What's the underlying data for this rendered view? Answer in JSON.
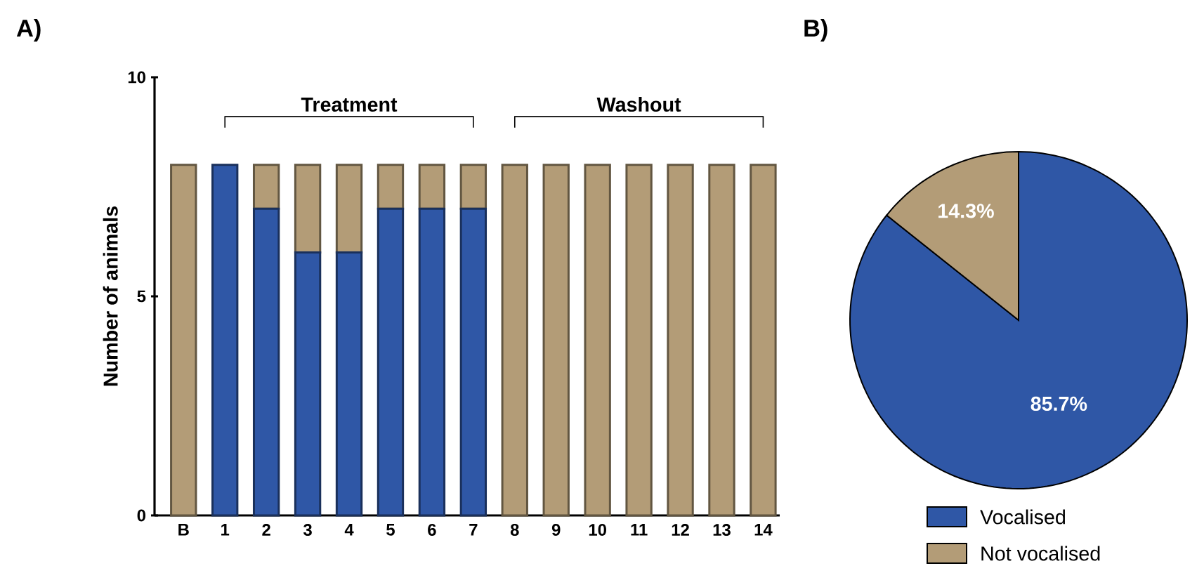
{
  "chart_data": [
    {
      "type": "bar",
      "title": "A)",
      "ylabel": "Number of animals",
      "stacked": true,
      "categories": [
        "B",
        "1",
        "2",
        "3",
        "4",
        "5",
        "6",
        "7",
        "8",
        "9",
        "10",
        "11",
        "12",
        "13",
        "14"
      ],
      "series": [
        {
          "color": "#2f57a6",
          "values": [
            0,
            8,
            7,
            6,
            6,
            7,
            7,
            7,
            0,
            0,
            0,
            0,
            0,
            0,
            0
          ]
        },
        {
          "color": "#b39c77",
          "values": [
            8,
            0,
            1,
            2,
            2,
            1,
            1,
            1,
            8,
            8,
            8,
            8,
            8,
            8,
            8
          ]
        }
      ],
      "ylim": [
        0,
        10
      ],
      "yticks": [
        0,
        5,
        10
      ],
      "annotations": [
        "Treatment",
        "Washout"
      ]
    },
    {
      "type": "pie",
      "title": "B)",
      "categories": [
        "Vocalised",
        "Not vocalised"
      ],
      "values": [
        85.7,
        14.3
      ],
      "colors": [
        "#2f57a6",
        "#b39c77"
      ],
      "value_labels": [
        "85.7%",
        "14.3%"
      ],
      "legend": "bottom"
    }
  ]
}
